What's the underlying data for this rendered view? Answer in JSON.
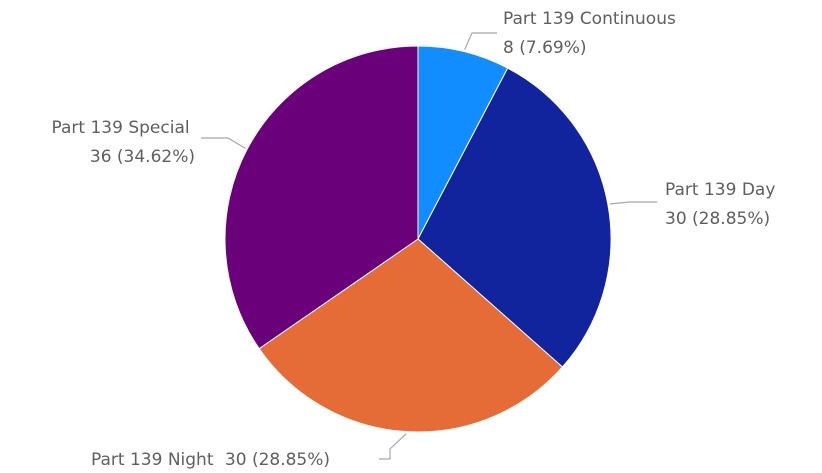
{
  "chart_data": {
    "type": "pie",
    "title": "",
    "legend": "none",
    "colors": {
      "Part 139 Continuous": "#118dff",
      "Part 139 Day": "#12239e",
      "Part 139 Night": "#e66c37",
      "Part 139 Special": "#6b007b"
    },
    "slices": [
      {
        "name": "Part 139 Continuous",
        "value": 8,
        "value_text": "8 (7.69%)"
      },
      {
        "name": "Part 139 Day",
        "value": 30,
        "value_text": "30 (28.85%)"
      },
      {
        "name": "Part 139 Night",
        "value": 30,
        "value_text": "30 (28.85%)"
      },
      {
        "name": "Part 139 Special",
        "value": 36,
        "value_text": "36 (34.62%)"
      }
    ]
  }
}
